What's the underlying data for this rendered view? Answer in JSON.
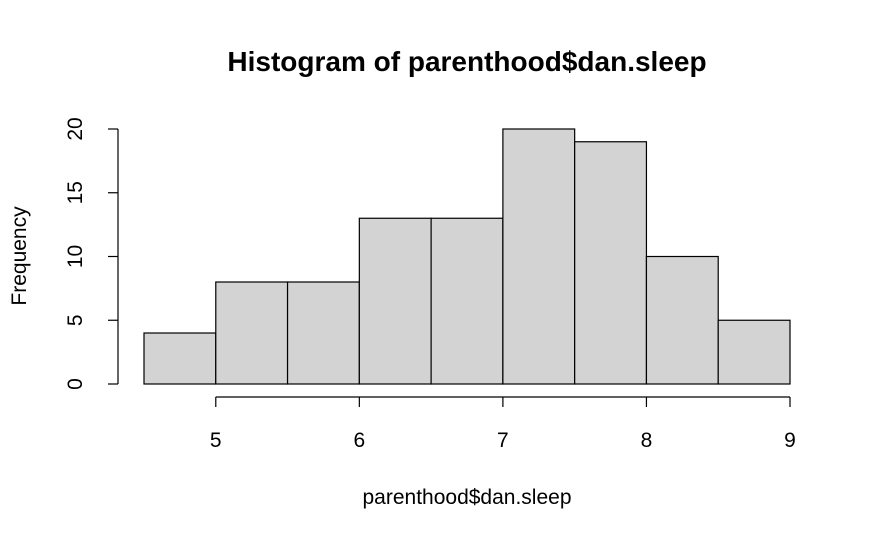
{
  "chart_data": {
    "type": "bar",
    "title": "Histogram of parenthood$dan.sleep",
    "xlabel": "parenthood$dan.sleep",
    "ylabel": "Frequency",
    "bins": [
      {
        "start": 4.5,
        "end": 5.0,
        "count": 4
      },
      {
        "start": 5.0,
        "end": 5.5,
        "count": 8
      },
      {
        "start": 5.5,
        "end": 6.0,
        "count": 8
      },
      {
        "start": 6.0,
        "end": 6.5,
        "count": 13
      },
      {
        "start": 6.5,
        "end": 7.0,
        "count": 13
      },
      {
        "start": 7.0,
        "end": 7.5,
        "count": 20
      },
      {
        "start": 7.5,
        "end": 8.0,
        "count": 19
      },
      {
        "start": 8.0,
        "end": 8.5,
        "count": 10
      },
      {
        "start": 8.5,
        "end": 9.0,
        "count": 5
      }
    ],
    "xticks": [
      5,
      6,
      7,
      8,
      9
    ],
    "yticks": [
      0,
      5,
      10,
      15,
      20
    ],
    "xlim": [
      4.5,
      9
    ],
    "ylim": [
      0,
      20
    ],
    "grid": false,
    "colors": {
      "bar_fill": "#d3d3d3",
      "bar_stroke": "#000000",
      "axis": "#000000",
      "background": "#ffffff"
    }
  }
}
